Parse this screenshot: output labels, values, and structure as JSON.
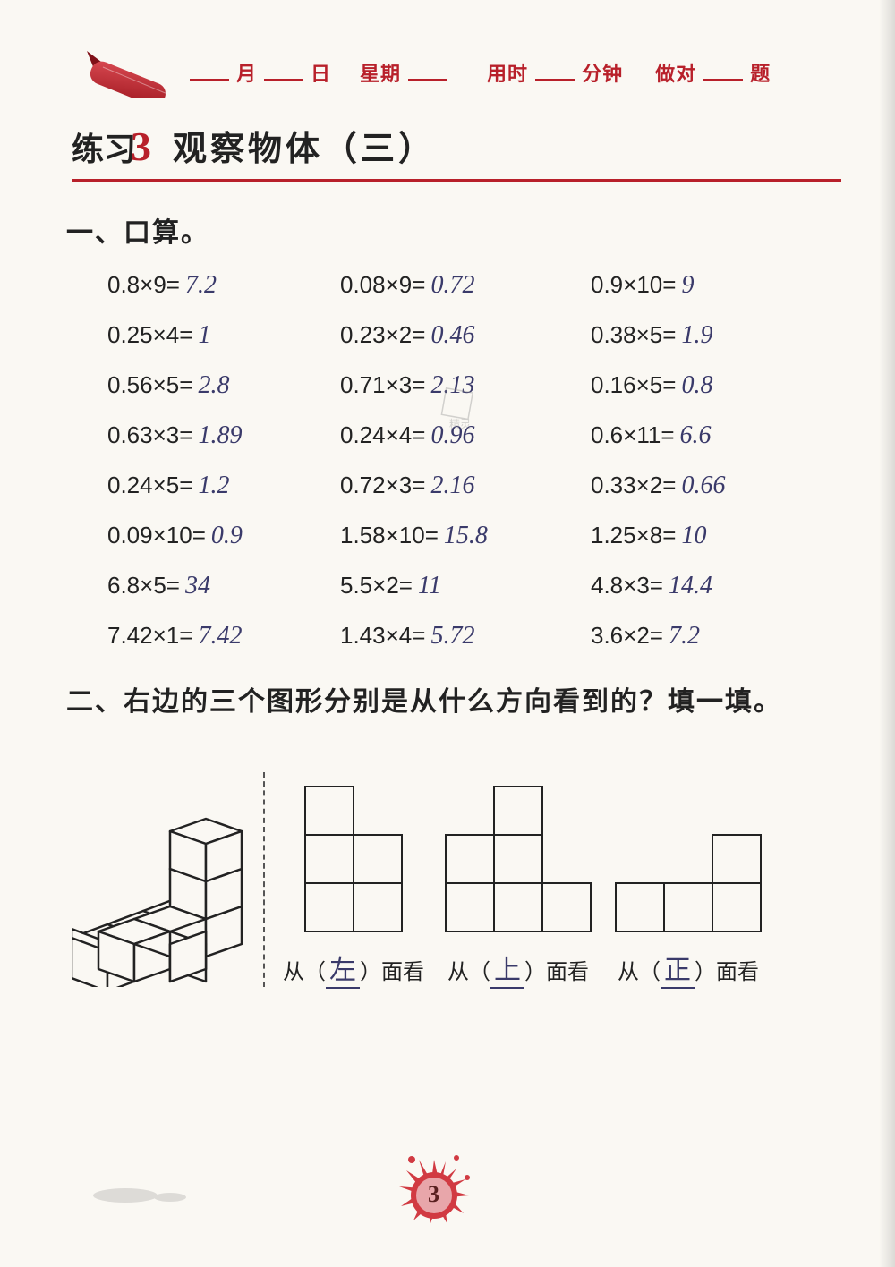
{
  "colors": {
    "accent": "#b8202a",
    "text": "#222222",
    "handwriting": "#3a3a6a",
    "page_bg": "#faf8f3"
  },
  "header": {
    "month": "月",
    "day": "日",
    "weekday": "星期",
    "time_used": "用时",
    "minutes": "分钟",
    "correct": "做对",
    "questions": "题"
  },
  "title": {
    "prefix": "练习",
    "number": "3",
    "text": "观察物体（三）"
  },
  "section1": {
    "heading": "一、口算。",
    "problems": [
      {
        "q": "0.8×9=",
        "a": "7.2"
      },
      {
        "q": "0.08×9=",
        "a": "0.72"
      },
      {
        "q": "0.9×10=",
        "a": "9"
      },
      {
        "q": "0.25×4=",
        "a": "1"
      },
      {
        "q": "0.23×2=",
        "a": "0.46"
      },
      {
        "q": "0.38×5=",
        "a": "1.9"
      },
      {
        "q": "0.56×5=",
        "a": "2.8"
      },
      {
        "q": "0.71×3=",
        "a": "2.13"
      },
      {
        "q": "0.16×5=",
        "a": "0.8"
      },
      {
        "q": "0.63×3=",
        "a": "1.89"
      },
      {
        "q": "0.24×4=",
        "a": "0.96"
      },
      {
        "q": "0.6×11=",
        "a": "6.6"
      },
      {
        "q": "0.24×5=",
        "a": "1.2"
      },
      {
        "q": "0.72×3=",
        "a": "2.16"
      },
      {
        "q": "0.33×2=",
        "a": "0.66"
      },
      {
        "q": "0.09×10=",
        "a": "0.9"
      },
      {
        "q": "1.58×10=",
        "a": "15.8"
      },
      {
        "q": "1.25×8=",
        "a": "10"
      },
      {
        "q": "6.8×5=",
        "a": "34"
      },
      {
        "q": "5.5×2=",
        "a": "11"
      },
      {
        "q": "4.8×3=",
        "a": "14.4"
      },
      {
        "q": "7.42×1=",
        "a": "7.42"
      },
      {
        "q": "1.43×4=",
        "a": "5.72"
      },
      {
        "q": "3.6×2=",
        "a": "7.2"
      }
    ]
  },
  "section2": {
    "heading": "二、右边的三个图形分别是从什么方向看到的？填一填。",
    "label_prefix": "从（",
    "label_suffix": "）面看",
    "answers": [
      "左",
      "上",
      "正"
    ],
    "cube_size": 54,
    "stroke": "#222222",
    "stroke_width": 2,
    "view1": {
      "type": "orthographic-grid",
      "cols": 2,
      "rows": 3,
      "cells": [
        [
          0,
          0
        ],
        [
          0,
          1
        ],
        [
          0,
          2
        ],
        [
          1,
          1
        ],
        [
          1,
          2
        ]
      ]
    },
    "view2": {
      "type": "orthographic-grid",
      "cols": 3,
      "rows": 3,
      "cells": [
        [
          1,
          0
        ],
        [
          0,
          1
        ],
        [
          1,
          1
        ],
        [
          0,
          2
        ],
        [
          1,
          2
        ],
        [
          2,
          2
        ]
      ]
    },
    "view3": {
      "type": "orthographic-grid",
      "cols": 3,
      "rows": 2,
      "cells": [
        [
          2,
          0
        ],
        [
          0,
          1
        ],
        [
          1,
          1
        ],
        [
          2,
          1
        ]
      ]
    }
  },
  "page_number": "3"
}
